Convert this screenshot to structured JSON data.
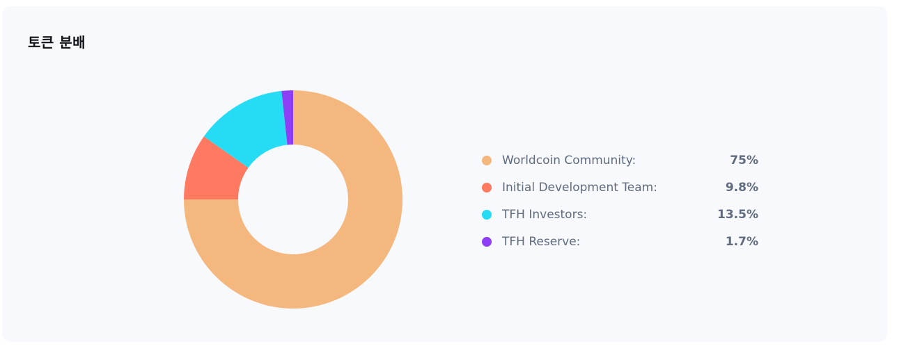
{
  "card": {
    "title": "토큰 분배"
  },
  "chart_data": {
    "type": "pie",
    "variant": "donut",
    "categories": [
      "Worldcoin Community:",
      "Initial Development Team:",
      "TFH Investors:",
      "TFH Reserve:"
    ],
    "values": [
      75,
      9.8,
      13.5,
      1.7
    ],
    "value_labels": [
      "75%",
      "9.8%",
      "13.5%",
      "1.7%"
    ],
    "colors": [
      "#f4b87f",
      "#ff7a61",
      "#26dcf5",
      "#8c3ff5"
    ],
    "legend_position": "right",
    "title": ""
  }
}
